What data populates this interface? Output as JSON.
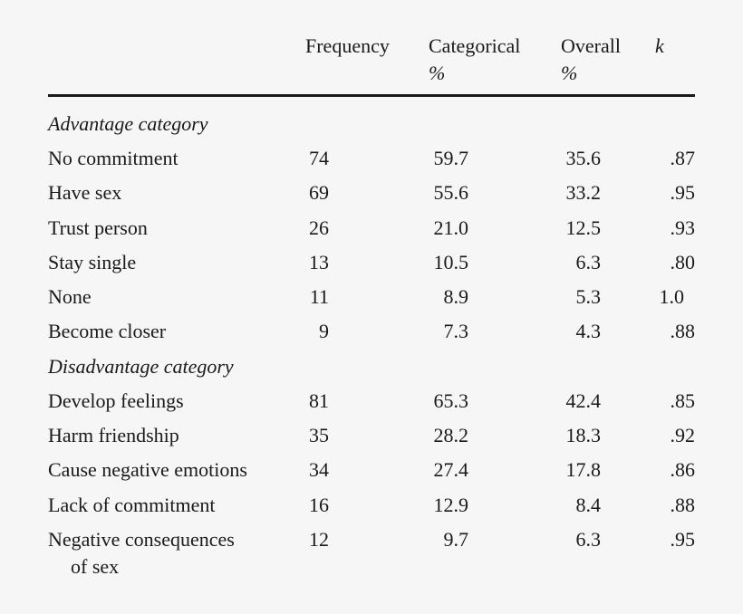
{
  "columns": {
    "frequency": "Frequency",
    "categorical_line1": "Categorical",
    "categorical_line2": "%",
    "overall_line1": "Overall",
    "overall_line2": "%",
    "k": "k"
  },
  "sections": [
    {
      "title": "Advantage category",
      "rows": [
        {
          "label": "No commitment",
          "freq": "74",
          "cat": "59.7",
          "overall": "35.6",
          "k": ".87"
        },
        {
          "label": "Have sex",
          "freq": "69",
          "cat": "55.6",
          "overall": "33.2",
          "k": ".95"
        },
        {
          "label": "Trust person",
          "freq": "26",
          "cat": "21.0",
          "overall": "12.5",
          "k": ".93"
        },
        {
          "label": "Stay single",
          "freq": "13",
          "cat": "10.5",
          "overall": "6.3",
          "k": ".80"
        },
        {
          "label": "None",
          "freq": "11",
          "cat": "8.9",
          "overall": "5.3",
          "k": "1.0"
        },
        {
          "label": "Become closer",
          "freq": "9",
          "cat": "7.3",
          "overall": "4.3",
          "k": ".88"
        }
      ]
    },
    {
      "title": "Disadvantage category",
      "rows": [
        {
          "label": "Develop feelings",
          "freq": "81",
          "cat": "65.3",
          "overall": "42.4",
          "k": ".85"
        },
        {
          "label": "Harm friendship",
          "freq": "35",
          "cat": "28.2",
          "overall": "18.3",
          "k": ".92"
        },
        {
          "label": "Cause negative emotions",
          "freq": "34",
          "cat": "27.4",
          "overall": "17.8",
          "k": ".86"
        },
        {
          "label": "Lack of commitment",
          "freq": "16",
          "cat": "12.9",
          "overall": "8.4",
          "k": ".88"
        },
        {
          "label": "Negative consequences",
          "label_cont": "of sex",
          "freq": "12",
          "cat": "9.7",
          "overall": "6.3",
          "k": ".95"
        }
      ]
    }
  ]
}
